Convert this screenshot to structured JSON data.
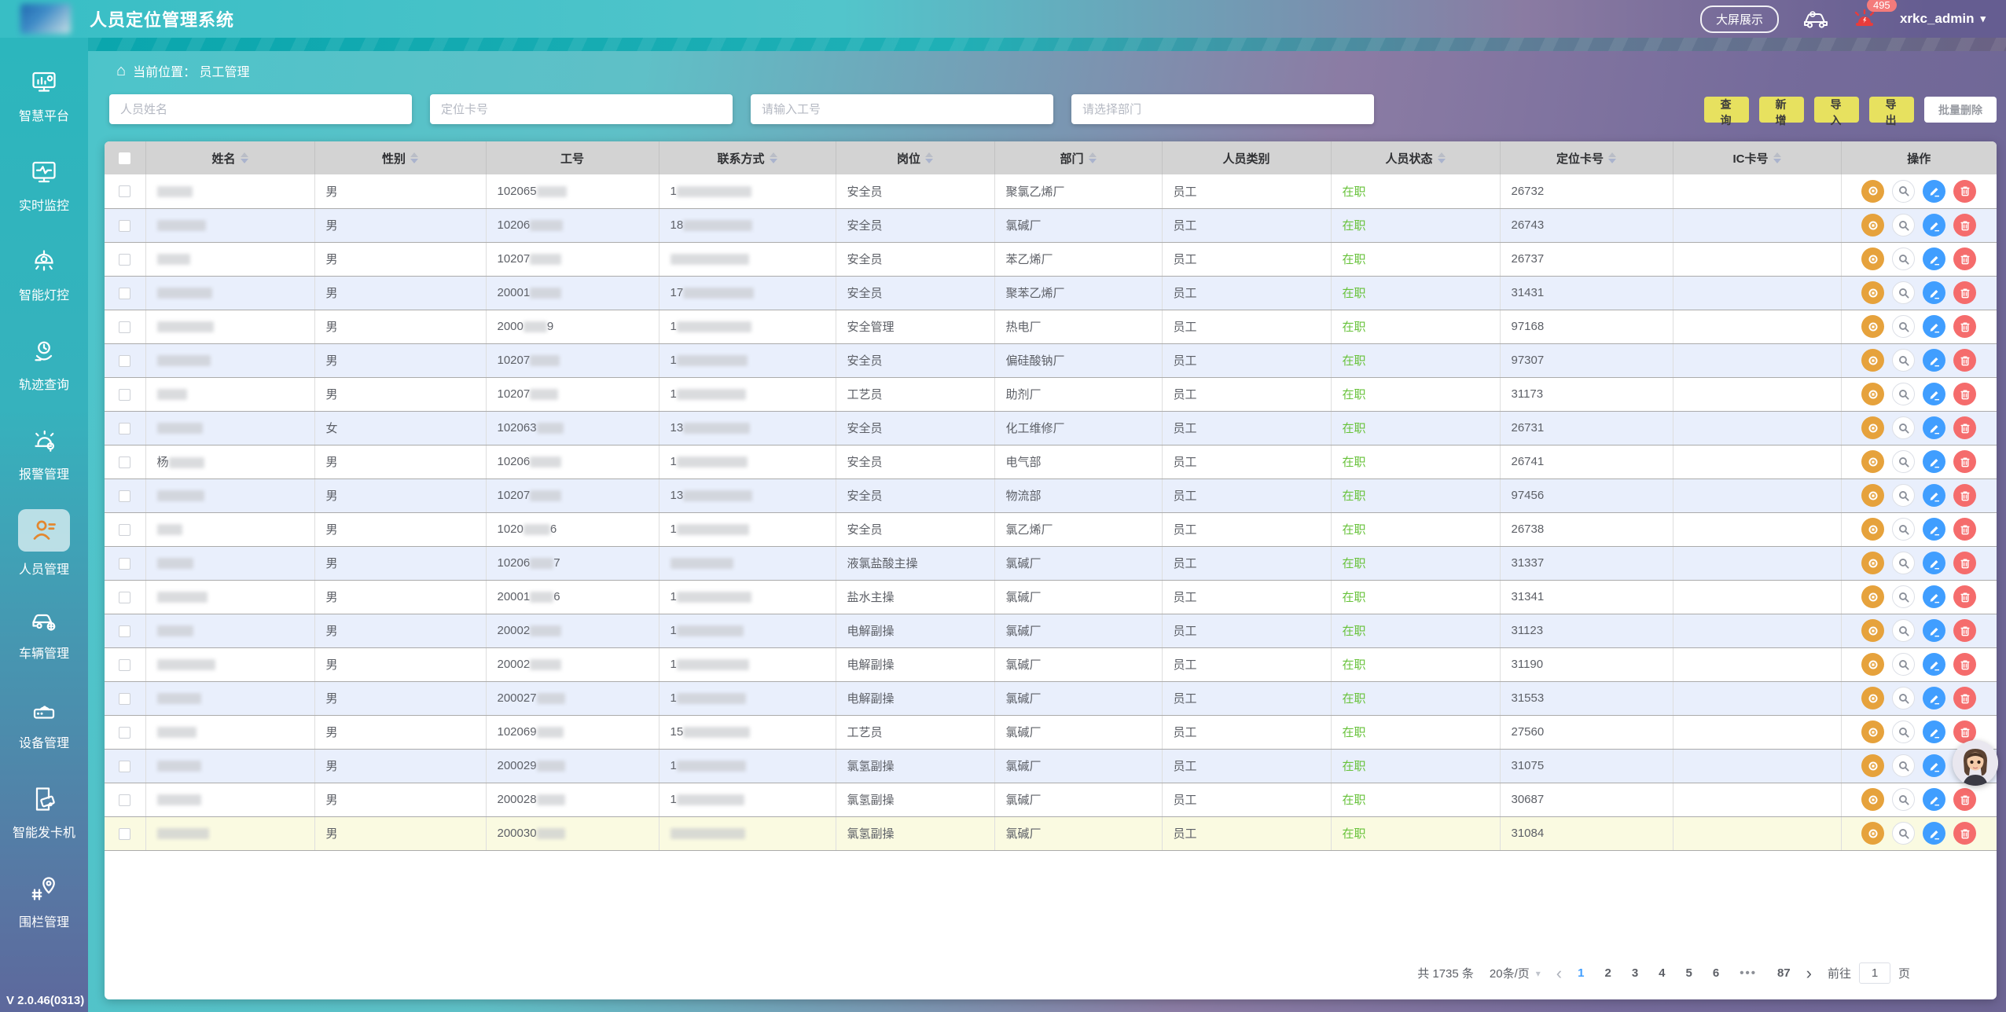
{
  "header": {
    "title": "人员定位管理系统",
    "big_screen_label": "大屏展示",
    "alarm_count": "495",
    "username": "xrkc_admin",
    "caret": "▾"
  },
  "sidebar": {
    "items": [
      {
        "label": "智慧平台"
      },
      {
        "label": "实时监控"
      },
      {
        "label": "智能灯控"
      },
      {
        "label": "轨迹查询"
      },
      {
        "label": "报警管理"
      },
      {
        "label": "人员管理",
        "active": true
      },
      {
        "label": "车辆管理"
      },
      {
        "label": "设备管理"
      },
      {
        "label": "智能发卡机"
      },
      {
        "label": "围栏管理"
      }
    ],
    "version": "V 2.0.46(0313)"
  },
  "breadcrumb": {
    "home_icon": "⌂",
    "text": "当前位置：  员工管理"
  },
  "filters": {
    "name_placeholder": "人员姓名",
    "card_placeholder": "定位卡号",
    "job_placeholder": "请输入工号",
    "dept_placeholder": "请选择部门"
  },
  "actions": {
    "search": "查 询",
    "add": "新 增",
    "import": "导 入",
    "export": "导 出",
    "batch_delete": "批量删除"
  },
  "table": {
    "columns": [
      {
        "label": "",
        "checkbox": true,
        "sortable": false
      },
      {
        "label": "姓名",
        "sortable": true
      },
      {
        "label": "性别",
        "sortable": true
      },
      {
        "label": "工号",
        "sortable": false
      },
      {
        "label": "联系方式",
        "sortable": true
      },
      {
        "label": "岗位",
        "sortable": true
      },
      {
        "label": "部门",
        "sortable": true
      },
      {
        "label": "人员类别",
        "sortable": false
      },
      {
        "label": "人员状态",
        "sortable": true
      },
      {
        "label": "定位卡号",
        "sortable": true
      },
      {
        "label": "IC卡号",
        "sortable": true
      },
      {
        "label": "操作",
        "sortable": false
      }
    ],
    "rows": [
      {
        "name_prefix": "",
        "name_w": 45,
        "gender": "男",
        "id_prefix": "102065",
        "id_w": 38,
        "id_suffix": "",
        "phone_prefix": "1",
        "phone_w": 95,
        "post": "安全员",
        "dept": "聚氯乙烯厂",
        "category": "员工",
        "status": "在职",
        "card": "26732",
        "ic": "",
        "highlight": false
      },
      {
        "name_prefix": "",
        "name_w": 62,
        "gender": "男",
        "id_prefix": "10206",
        "id_w": 42,
        "id_suffix": "",
        "phone_prefix": "18",
        "phone_w": 88,
        "post": "安全员",
        "dept": "氯碱厂",
        "category": "员工",
        "status": "在职",
        "card": "26743",
        "ic": "",
        "highlight": false
      },
      {
        "name_prefix": "",
        "name_w": 42,
        "gender": "男",
        "id_prefix": "10207",
        "id_w": 40,
        "id_suffix": "",
        "phone_prefix": "",
        "phone_w": 100,
        "post": "安全员",
        "dept": "苯乙烯厂",
        "category": "员工",
        "status": "在职",
        "card": "26737",
        "ic": "",
        "highlight": false
      },
      {
        "name_prefix": "",
        "name_w": 70,
        "gender": "男",
        "id_prefix": "20001",
        "id_w": 40,
        "id_suffix": "",
        "phone_prefix": "17",
        "phone_w": 90,
        "post": "安全员",
        "dept": "聚苯乙烯厂",
        "category": "员工",
        "status": "在职",
        "card": "31431",
        "ic": "",
        "highlight": false
      },
      {
        "name_prefix": "",
        "name_w": 72,
        "gender": "男",
        "id_prefix": "2000",
        "id_w": 30,
        "id_suffix": "9",
        "phone_prefix": "1",
        "phone_w": 95,
        "post": "安全管理",
        "dept": "热电厂",
        "category": "员工",
        "status": "在职",
        "card": "97168",
        "ic": "",
        "highlight": false
      },
      {
        "name_prefix": "",
        "name_w": 68,
        "gender": "男",
        "id_prefix": "10207",
        "id_w": 38,
        "id_suffix": "",
        "phone_prefix": "1",
        "phone_w": 90,
        "post": "安全员",
        "dept": "偏硅酸钠厂",
        "category": "员工",
        "status": "在职",
        "card": "97307",
        "ic": "",
        "highlight": false
      },
      {
        "name_prefix": "",
        "name_w": 38,
        "gender": "男",
        "id_prefix": "10207",
        "id_w": 36,
        "id_suffix": "",
        "phone_prefix": "1",
        "phone_w": 88,
        "post": "工艺员",
        "dept": "助剂厂",
        "category": "员工",
        "status": "在职",
        "card": "31173",
        "ic": "",
        "highlight": false
      },
      {
        "name_prefix": "",
        "name_w": 58,
        "gender": "女",
        "id_prefix": "102063",
        "id_w": 34,
        "id_suffix": "",
        "phone_prefix": "13",
        "phone_w": 85,
        "post": "安全员",
        "dept": "化工维修厂",
        "category": "员工",
        "status": "在职",
        "card": "26731",
        "ic": "",
        "highlight": false
      },
      {
        "name_prefix": "杨",
        "name_w": 45,
        "gender": "男",
        "id_prefix": "10206",
        "id_w": 40,
        "id_suffix": "",
        "phone_prefix": "1",
        "phone_w": 90,
        "post": "安全员",
        "dept": "电气部",
        "category": "员工",
        "status": "在职",
        "card": "26741",
        "ic": "",
        "highlight": false
      },
      {
        "name_prefix": "",
        "name_w": 60,
        "gender": "男",
        "id_prefix": "10207",
        "id_w": 40,
        "id_suffix": "",
        "phone_prefix": "13",
        "phone_w": 88,
        "post": "安全员",
        "dept": "物流部",
        "category": "员工",
        "status": "在职",
        "card": "97456",
        "ic": "",
        "highlight": false
      },
      {
        "name_prefix": "",
        "name_w": 32,
        "gender": "男",
        "id_prefix": "1020",
        "id_w": 34,
        "id_suffix": "6",
        "phone_prefix": "1",
        "phone_w": 92,
        "post": "安全员",
        "dept": "氯乙烯厂",
        "category": "员工",
        "status": "在职",
        "card": "26738",
        "ic": "",
        "highlight": false
      },
      {
        "name_prefix": "",
        "name_w": 46,
        "gender": "男",
        "id_prefix": "10206",
        "id_w": 30,
        "id_suffix": "7",
        "phone_prefix": "",
        "phone_w": 80,
        "post": "液氯盐酸主操",
        "dept": "氯碱厂",
        "category": "员工",
        "status": "在职",
        "card": "31337",
        "ic": "",
        "highlight": false
      },
      {
        "name_prefix": "",
        "name_w": 64,
        "gender": "男",
        "id_prefix": "20001",
        "id_w": 30,
        "id_suffix": "6",
        "phone_prefix": "1",
        "phone_w": 95,
        "post": "盐水主操",
        "dept": "氯碱厂",
        "category": "员工",
        "status": "在职",
        "card": "31341",
        "ic": "",
        "highlight": false
      },
      {
        "name_prefix": "",
        "name_w": 46,
        "gender": "男",
        "id_prefix": "20002",
        "id_w": 40,
        "id_suffix": "",
        "phone_prefix": "1",
        "phone_w": 85,
        "post": "电解副操",
        "dept": "氯碱厂",
        "category": "员工",
        "status": "在职",
        "card": "31123",
        "ic": "",
        "highlight": false
      },
      {
        "name_prefix": "",
        "name_w": 74,
        "gender": "男",
        "id_prefix": "20002",
        "id_w": 40,
        "id_suffix": "",
        "phone_prefix": "1",
        "phone_w": 92,
        "post": "电解副操",
        "dept": "氯碱厂",
        "category": "员工",
        "status": "在职",
        "card": "31190",
        "ic": "",
        "highlight": false
      },
      {
        "name_prefix": "",
        "name_w": 56,
        "gender": "男",
        "id_prefix": "200027",
        "id_w": 36,
        "id_suffix": "",
        "phone_prefix": "1",
        "phone_w": 88,
        "post": "电解副操",
        "dept": "氯碱厂",
        "category": "员工",
        "status": "在职",
        "card": "31553",
        "ic": "",
        "highlight": false
      },
      {
        "name_prefix": "",
        "name_w": 50,
        "gender": "男",
        "id_prefix": "102069",
        "id_w": 34,
        "id_suffix": "",
        "phone_prefix": "15",
        "phone_w": 85,
        "post": "工艺员",
        "dept": "氯碱厂",
        "category": "员工",
        "status": "在职",
        "card": "27560",
        "ic": "",
        "highlight": false
      },
      {
        "name_prefix": "",
        "name_w": 56,
        "gender": "男",
        "id_prefix": "200029",
        "id_w": 36,
        "id_suffix": "",
        "phone_prefix": "1",
        "phone_w": 88,
        "post": "氯氢副操",
        "dept": "氯碱厂",
        "category": "员工",
        "status": "在职",
        "card": "31075",
        "ic": "",
        "highlight": false
      },
      {
        "name_prefix": "",
        "name_w": 56,
        "gender": "男",
        "id_prefix": "200028",
        "id_w": 36,
        "id_suffix": "",
        "phone_prefix": "1",
        "phone_w": 86,
        "post": "氯氢副操",
        "dept": "氯碱厂",
        "category": "员工",
        "status": "在职",
        "card": "30687",
        "ic": "",
        "highlight": false
      },
      {
        "name_prefix": "",
        "name_w": 66,
        "gender": "男",
        "id_prefix": "200030",
        "id_w": 36,
        "id_suffix": "",
        "phone_prefix": "",
        "phone_w": 95,
        "post": "氯氢副操",
        "dept": "氯碱厂",
        "category": "员工",
        "status": "在职",
        "card": "31084",
        "ic": "",
        "highlight": true
      }
    ]
  },
  "pagination": {
    "total": "共 1735 条",
    "page_size": "20条/页",
    "size_caret": "▾",
    "prev": "‹",
    "next": "›",
    "pages": [
      "1",
      "2",
      "3",
      "4",
      "5",
      "6",
      "•••",
      "87"
    ],
    "active_page": "1",
    "goto_label": "前往",
    "goto_value": "1",
    "goto_unit": "页"
  },
  "colors": {
    "accent_blue": "#409eff",
    "status_green": "#67c23a",
    "op_orange": "#e6a23c",
    "op_red": "#f56c6c",
    "button_yellow": "#e7e15f",
    "teal": "#2db7be",
    "purple": "#655d91"
  }
}
